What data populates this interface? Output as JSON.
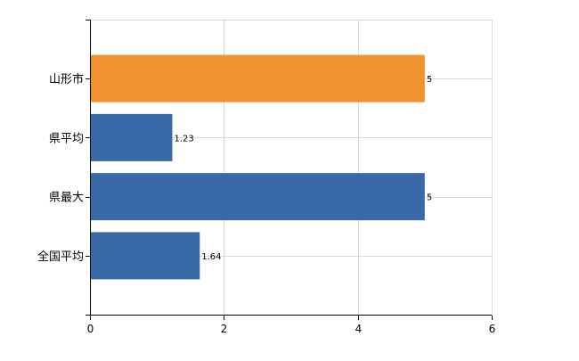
{
  "chart_data": {
    "type": "bar",
    "orientation": "horizontal",
    "categories": [
      "山形市",
      "県平均",
      "県最大",
      "全国平均"
    ],
    "values": [
      5,
      1.23,
      5,
      1.64
    ],
    "data_labels": [
      "5",
      "1.23",
      "5",
      "1.64"
    ],
    "bar_colors": [
      "#f0922f",
      "#3a69a8",
      "#3a69a8",
      "#3a69a8"
    ],
    "xlim": [
      0,
      6
    ],
    "x_ticks": [
      0,
      2,
      4,
      6
    ],
    "x_tick_labels": [
      "0",
      "2",
      "4",
      "6"
    ],
    "grid": true,
    "legend": "none",
    "title": "",
    "xlabel": "",
    "ylabel": ""
  }
}
